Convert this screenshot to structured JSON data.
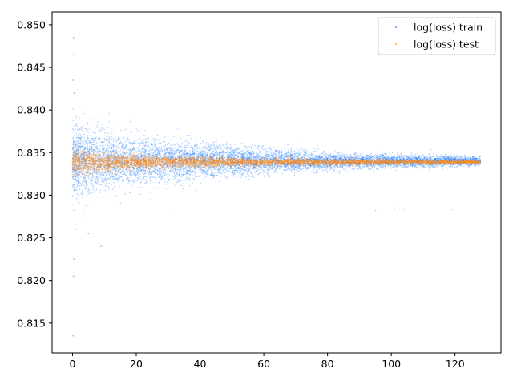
{
  "chart_data": {
    "type": "scatter",
    "title": "",
    "xlabel": "",
    "ylabel": "",
    "xlim": [
      -6.4,
      134.4
    ],
    "ylim": [
      0.8115,
      0.8515
    ],
    "x_ticks": [
      0,
      20,
      40,
      60,
      80,
      100,
      120
    ],
    "x_tick_labels": [
      "0",
      "20",
      "40",
      "60",
      "80",
      "100",
      "120"
    ],
    "y_ticks": [
      0.815,
      0.82,
      0.825,
      0.83,
      0.835,
      0.84,
      0.845,
      0.85
    ],
    "y_tick_labels": [
      "0.815",
      "0.820",
      "0.825",
      "0.830",
      "0.835",
      "0.840",
      "0.845",
      "0.850"
    ],
    "grid": false,
    "legend": {
      "position": "top-right"
    },
    "series": [
      {
        "name": "log(loss) train",
        "color": "#1f7fff",
        "marker": "dot",
        "x_range": [
          0,
          128
        ],
        "center": 0.834,
        "spread_by_x": [
          {
            "x": 0,
            "half_width": 0.0045
          },
          {
            "x": 10,
            "half_width": 0.0035
          },
          {
            "x": 20,
            "half_width": 0.0028
          },
          {
            "x": 40,
            "half_width": 0.002
          },
          {
            "x": 60,
            "half_width": 0.0014
          },
          {
            "x": 80,
            "half_width": 0.0009
          },
          {
            "x": 128,
            "half_width": 0.0005
          }
        ],
        "outliers": [
          {
            "x": 0.3,
            "y": 0.8485
          },
          {
            "x": 0.4,
            "y": 0.8465
          },
          {
            "x": 0.2,
            "y": 0.8435
          },
          {
            "x": 0.5,
            "y": 0.842
          },
          {
            "x": 0.3,
            "y": 0.8205
          },
          {
            "x": 0.4,
            "y": 0.8225
          },
          {
            "x": 0.2,
            "y": 0.8135
          },
          {
            "x": 1.0,
            "y": 0.826
          },
          {
            "x": 5.0,
            "y": 0.8255
          },
          {
            "x": 9.0,
            "y": 0.824
          }
        ]
      },
      {
        "name": "log(loss) test",
        "color": "#ff8c1a",
        "marker": "dot",
        "x_range": [
          0,
          128
        ],
        "center": 0.8339,
        "spread_by_x": [
          {
            "x": 0,
            "half_width": 0.0015
          },
          {
            "x": 20,
            "half_width": 0.0008
          },
          {
            "x": 60,
            "half_width": 0.0004
          },
          {
            "x": 128,
            "half_width": 0.0002
          }
        ],
        "outliers": [
          {
            "x": 95,
            "y": 0.8282
          },
          {
            "x": 97,
            "y": 0.8283
          },
          {
            "x": 101,
            "y": 0.8285
          },
          {
            "x": 104,
            "y": 0.8284
          },
          {
            "x": 119,
            "y": 0.8283
          },
          {
            "x": 102,
            "y": 0.835
          },
          {
            "x": 116,
            "y": 0.833
          },
          {
            "x": 103,
            "y": 0.8349
          },
          {
            "x": 8,
            "y": 0.8298
          },
          {
            "x": 12,
            "y": 0.8372
          }
        ]
      }
    ]
  }
}
